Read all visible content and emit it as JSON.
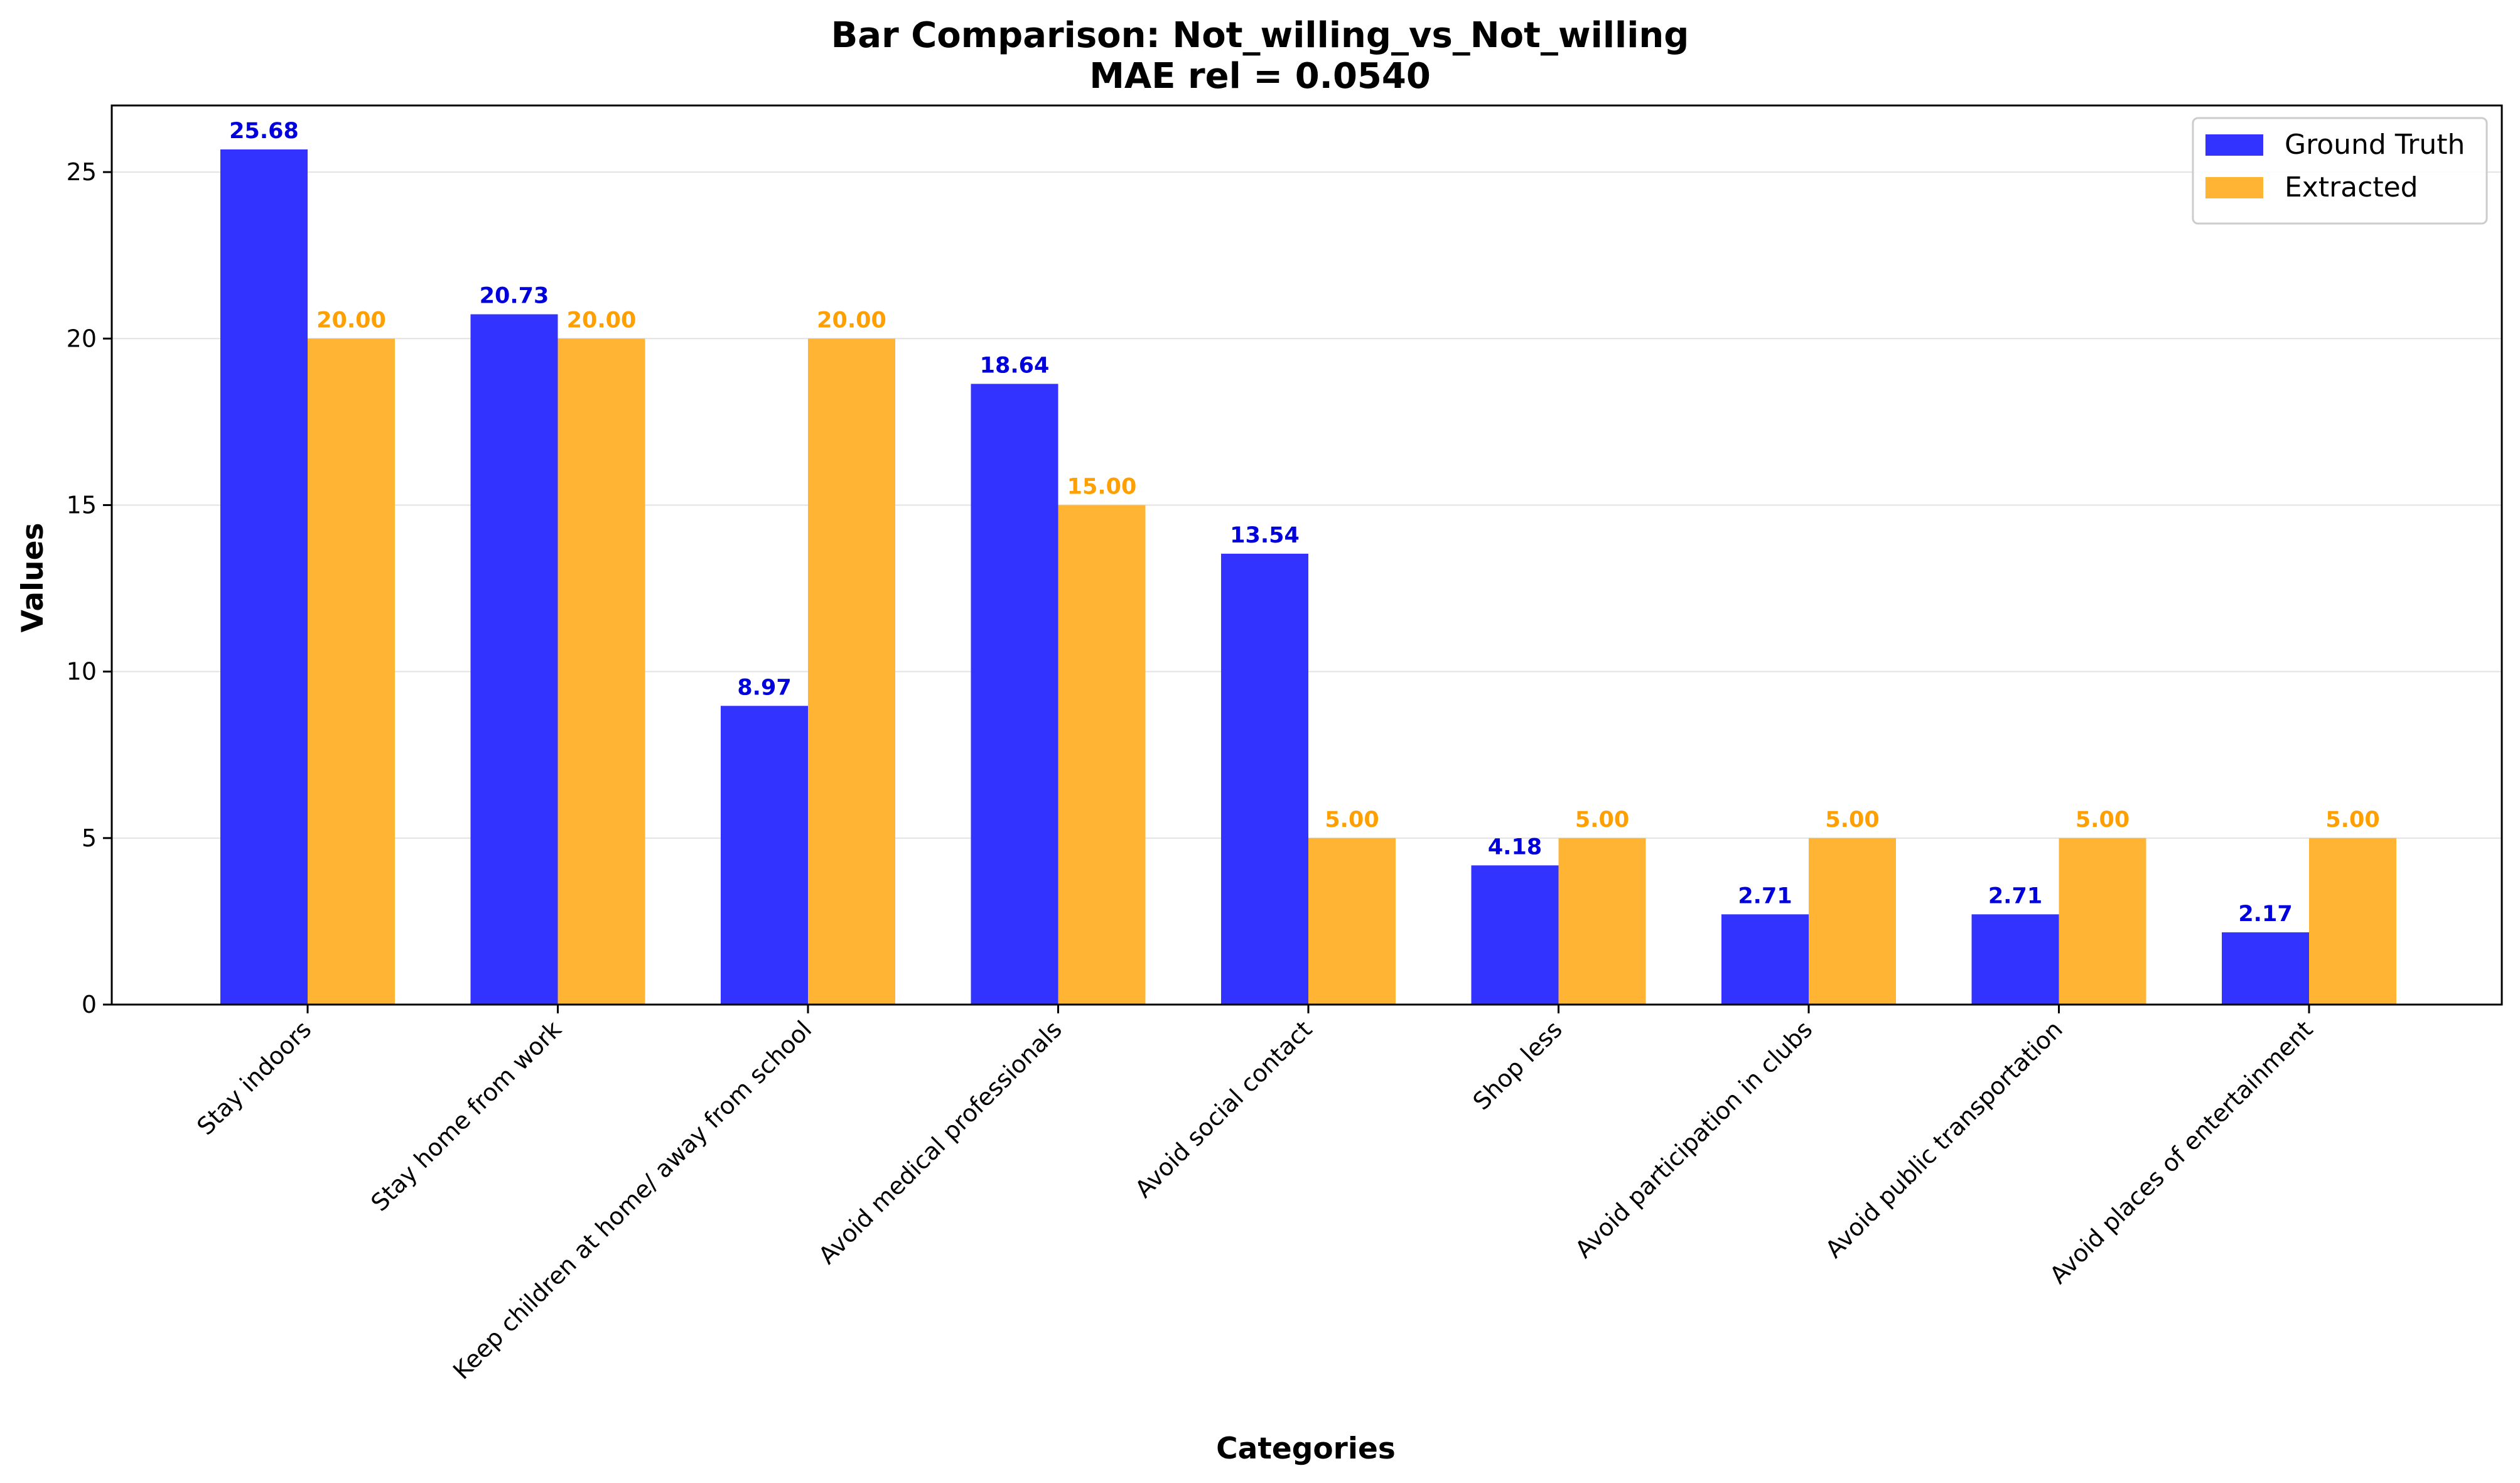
{
  "chart_data": {
    "type": "bar",
    "title": "Bar Comparison: Not_willing_vs_Not_willing",
    "subtitle": "MAE rel = 0.0540",
    "xlabel": "Categories",
    "ylabel": "Values",
    "ylim": [
      0,
      27
    ],
    "yticks": [
      0,
      5,
      10,
      15,
      20,
      25
    ],
    "grid": "y",
    "legend_position": "top-right",
    "categories": [
      "Stay indoors",
      "Stay home from work",
      "Keep children at home/ away from school",
      "Avoid medical professionals",
      "Avoid social contact",
      "Shop less",
      "Avoid participation in clubs",
      "Avoid public transportation",
      "Avoid places of entertainment"
    ],
    "series": [
      {
        "name": "Ground Truth",
        "color": "#3333ff",
        "label_color": "#0000dd",
        "values": [
          25.68,
          20.73,
          8.97,
          18.64,
          13.54,
          4.18,
          2.71,
          2.71,
          2.17
        ],
        "labels": [
          "25.68",
          "20.73",
          "8.97",
          "18.64",
          "13.54",
          "4.18",
          "2.71",
          "2.71",
          "2.17"
        ]
      },
      {
        "name": "Extracted",
        "color": "#ffb533",
        "label_color": "#ff9f00",
        "values": [
          20.0,
          20.0,
          20.0,
          15.0,
          5.0,
          5.0,
          5.0,
          5.0,
          5.0
        ],
        "labels": [
          "20.00",
          "20.00",
          "20.00",
          "15.00",
          "5.00",
          "5.00",
          "5.00",
          "5.00",
          "5.00"
        ]
      }
    ]
  }
}
